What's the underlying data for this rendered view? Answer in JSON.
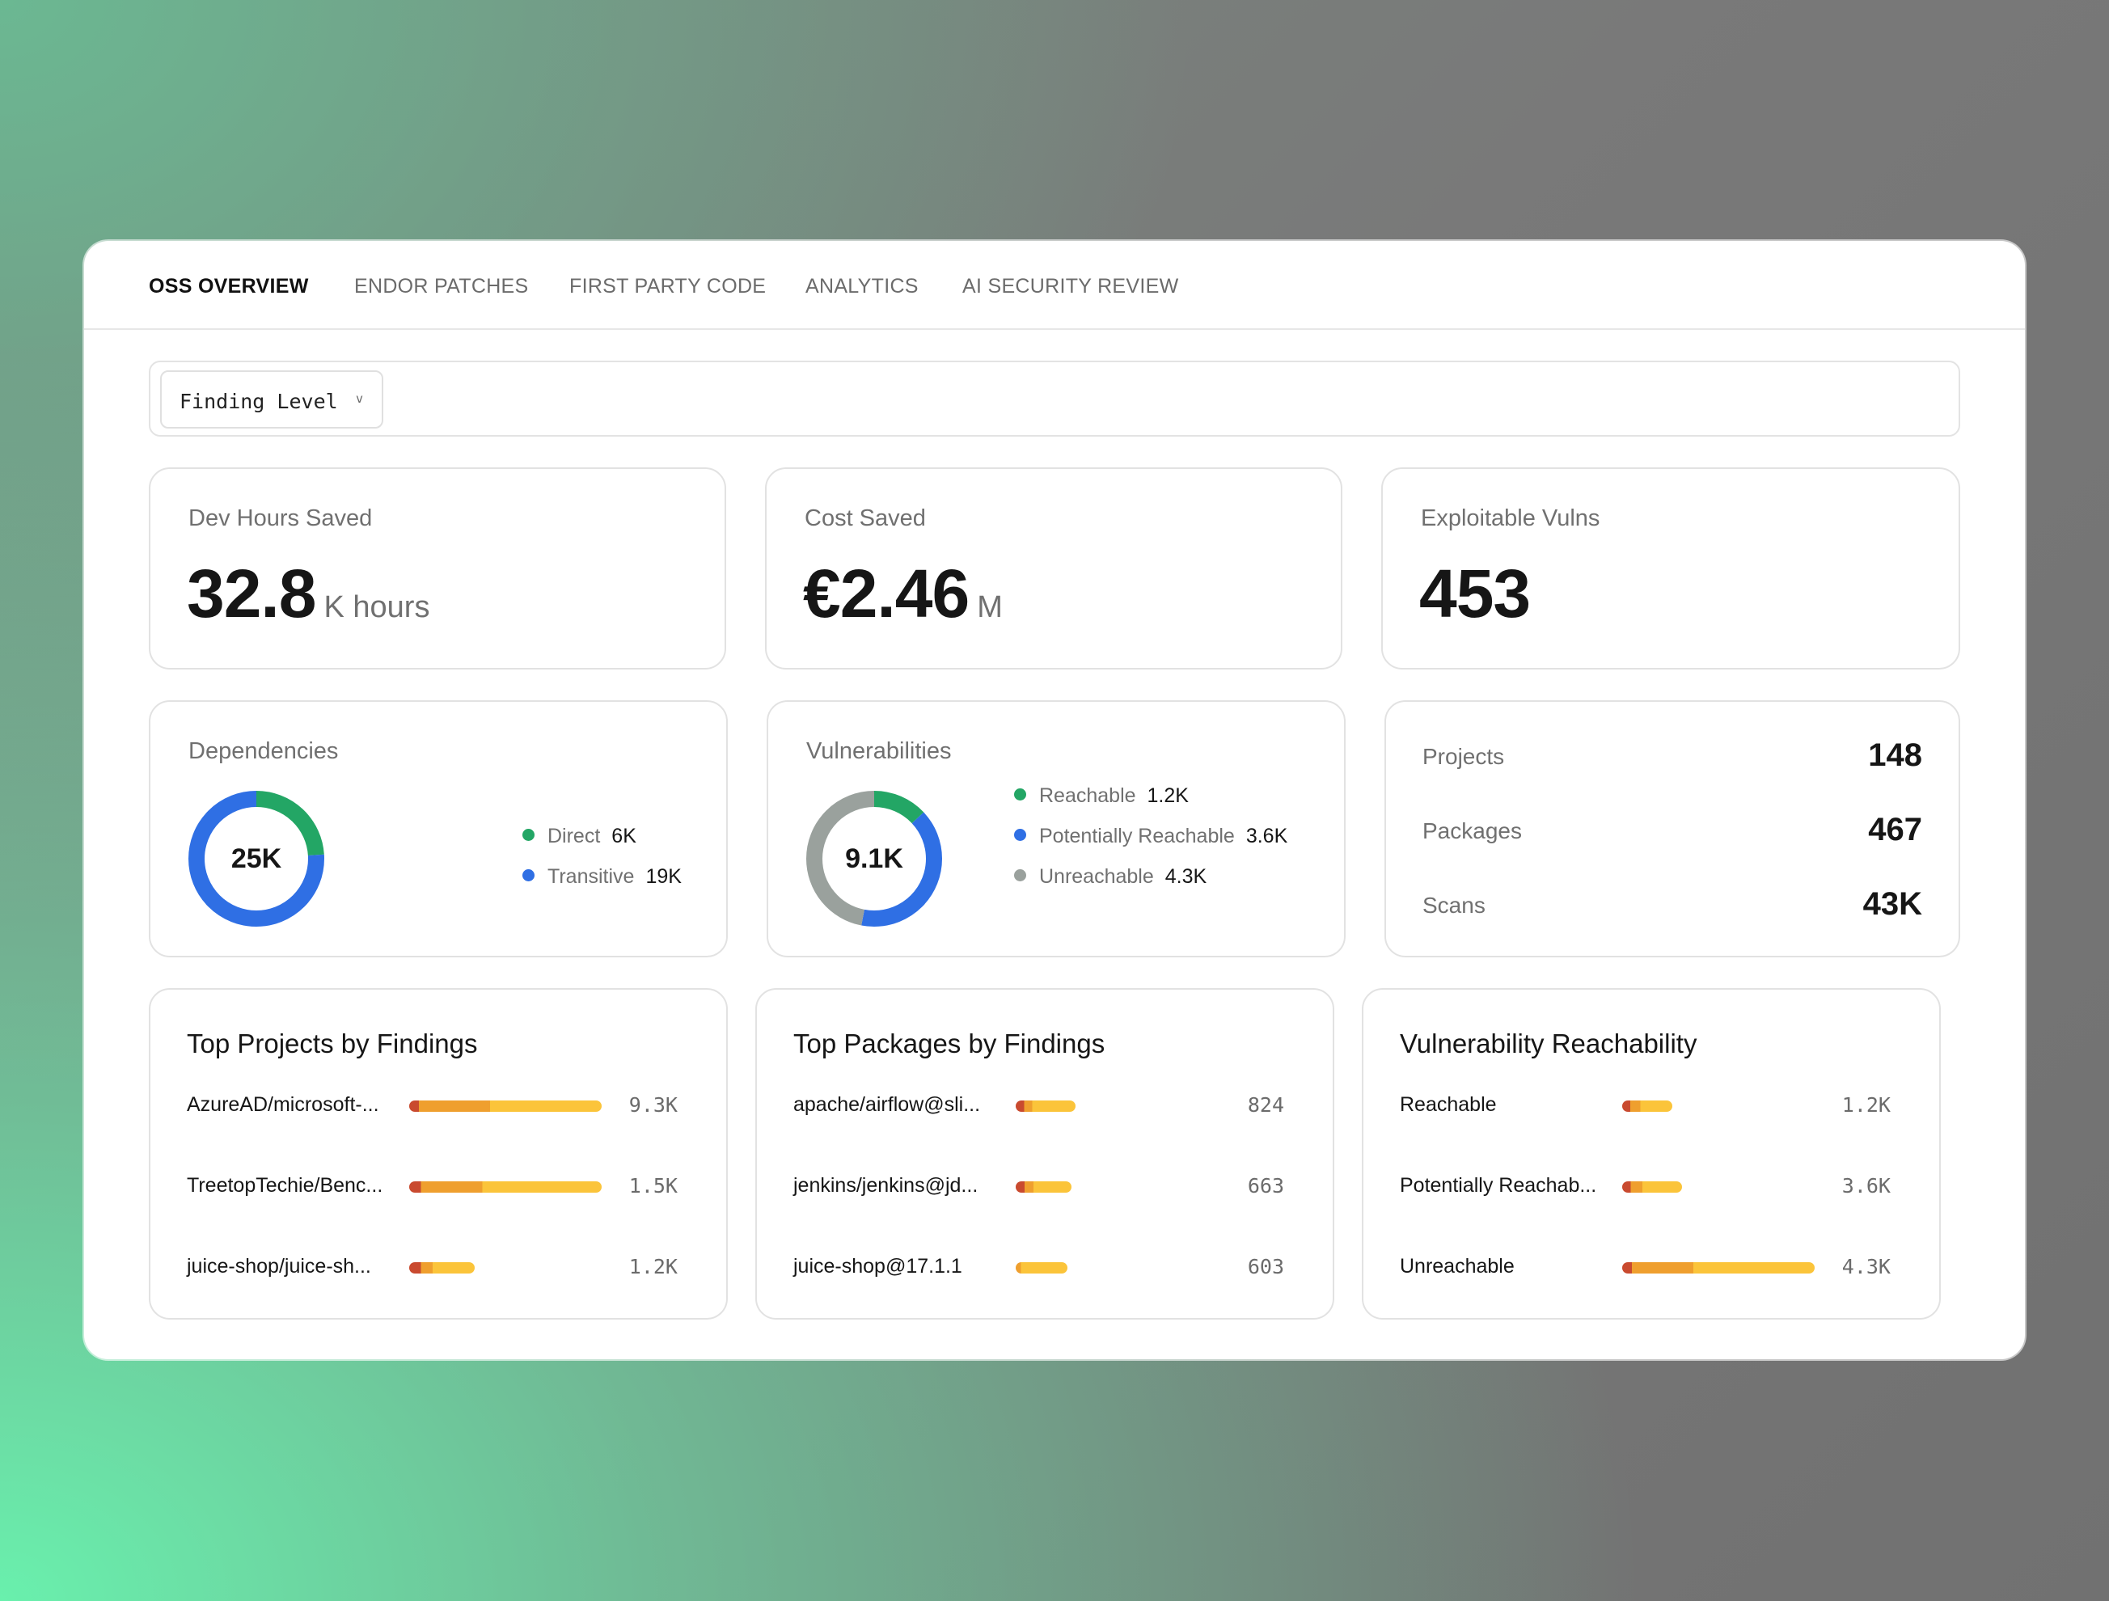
{
  "tabs": [
    "OSS OVERVIEW",
    "ENDOR PATCHES",
    "FIRST PARTY CODE",
    "ANALYTICS",
    "AI SECURITY REVIEW"
  ],
  "filter": {
    "label": "Finding Level",
    "chevron": "v"
  },
  "kpis": {
    "dev_hours": {
      "label": "Dev Hours Saved",
      "value": "32.8",
      "unit": "K hours"
    },
    "cost": {
      "label": "Cost Saved",
      "value": "€2.46",
      "unit": "M"
    },
    "exploitable": {
      "label": "Exploitable Vulns",
      "value": "453"
    }
  },
  "dependencies": {
    "title": "Dependencies",
    "center": "25K",
    "items": [
      {
        "label": "Direct",
        "value": "6K",
        "fraction": 0.24,
        "color": "#23a665"
      },
      {
        "label": "Transitive",
        "value": "19K",
        "fraction": 0.76,
        "color": "#2f6fe4"
      }
    ]
  },
  "vulnerabilities": {
    "title": "Vulnerabilities",
    "center": "9.1K",
    "items": [
      {
        "label": "Reachable",
        "value": "1.2K",
        "fraction": 0.13,
        "color": "#23a665"
      },
      {
        "label": "Potentially Reachable",
        "value": "3.6K",
        "fraction": 0.4,
        "color": "#2f6fe4"
      },
      {
        "label": "Unreachable",
        "value": "4.3K",
        "fraction": 0.47,
        "color": "#9aa19d"
      }
    ]
  },
  "stats": [
    {
      "label": "Projects",
      "value": "148"
    },
    {
      "label": "Packages",
      "value": "467"
    },
    {
      "label": "Scans",
      "value": "43K"
    }
  ],
  "top_projects": {
    "title": "Top Projects by Findings",
    "rows": [
      {
        "label": "AzureAD/microsoft-...",
        "value": "9.3K",
        "fraction": 1.0,
        "segments": [
          0.05,
          0.37,
          0.58
        ]
      },
      {
        "label": "TreetopTechie/Benc...",
        "value": "1.5K",
        "fraction": 1.0,
        "segments": [
          0.06,
          0.32,
          0.62
        ]
      },
      {
        "label": "juice-shop/juice-sh...",
        "value": "1.2K",
        "fraction": 0.34,
        "segments": [
          0.18,
          0.18,
          0.64
        ]
      }
    ]
  },
  "top_packages": {
    "title": "Top Packages by Findings",
    "rows": [
      {
        "label": "apache/airflow@sli...",
        "value": "824",
        "fraction": 0.31,
        "segments": [
          0.14,
          0.14,
          0.72
        ]
      },
      {
        "label": "jenkins/jenkins@jd...",
        "value": "663",
        "fraction": 0.29,
        "segments": [
          0.16,
          0.16,
          0.68
        ]
      },
      {
        "label": "juice-shop@17.1.1",
        "value": "603",
        "fraction": 0.27,
        "segments": [
          0.0,
          0.1,
          0.9
        ]
      }
    ]
  },
  "reachability": {
    "title": "Vulnerability Reachability",
    "rows": [
      {
        "label": "Reachable",
        "value": "1.2K",
        "fraction": 0.26,
        "segments": [
          0.16,
          0.2,
          0.64
        ]
      },
      {
        "label": "Potentially Reachab...",
        "value": "3.6K",
        "fraction": 0.31,
        "segments": [
          0.14,
          0.2,
          0.66
        ]
      },
      {
        "label": "Unreachable",
        "value": "4.3K",
        "fraction": 1.0,
        "segments": [
          0.05,
          0.32,
          0.63
        ]
      }
    ]
  },
  "colors": {
    "bar_dark": "#c94a2f",
    "bar_mid": "#ef9f2e",
    "bar_light": "#fbc43a",
    "green": "#23a665",
    "blue": "#2f6fe4",
    "grey": "#9aa19d"
  }
}
